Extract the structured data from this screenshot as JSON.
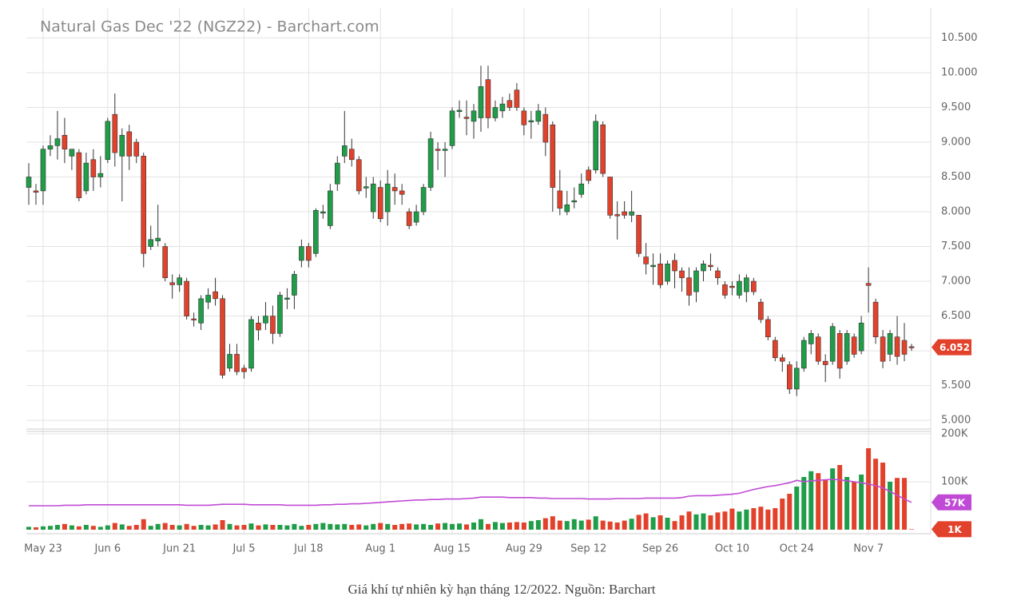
{
  "chart_data": {
    "type": "candlestick",
    "title": "Natural Gas Dec '22 (NGZ22) - Barchart.com",
    "caption": "Giá khí tự nhiên kỳ hạn tháng 12/2022. Nguồn: Barchart",
    "categories": [
      null,
      null,
      "May 23",
      null,
      null,
      null,
      null,
      null,
      null,
      null,
      null,
      "Jun 6",
      null,
      null,
      null,
      null,
      null,
      null,
      null,
      null,
      null,
      "Jun 21",
      null,
      null,
      null,
      null,
      null,
      null,
      null,
      null,
      "Jul 5",
      null,
      null,
      null,
      null,
      null,
      null,
      null,
      null,
      "Jul 18",
      null,
      null,
      null,
      null,
      null,
      null,
      null,
      null,
      null,
      "Aug 1",
      null,
      null,
      null,
      null,
      null,
      null,
      null,
      null,
      null,
      "Aug 15",
      null,
      null,
      null,
      null,
      null,
      null,
      null,
      null,
      null,
      "Aug 29",
      null,
      null,
      null,
      null,
      null,
      null,
      null,
      null,
      "Sep 12",
      null,
      null,
      null,
      null,
      null,
      null,
      null,
      null,
      null,
      "Sep 26",
      null,
      null,
      null,
      null,
      null,
      null,
      null,
      null,
      null,
      "Oct 10",
      null,
      null,
      null,
      null,
      null,
      null,
      null,
      null,
      "Oct 24",
      null,
      null,
      null,
      null,
      null,
      null,
      null,
      null,
      null,
      "Nov 7",
      null,
      null,
      null,
      null,
      null,
      null
    ],
    "open": [
      8.35,
      8.3,
      8.3,
      8.9,
      8.95,
      9.1,
      8.8,
      8.85,
      8.3,
      8.75,
      8.5,
      8.75,
      9.4,
      8.8,
      9.15,
      9.0,
      8.8,
      7.5,
      7.58,
      7.5,
      6.98,
      6.95,
      7.0,
      6.46,
      6.4,
      6.7,
      6.85,
      6.75,
      5.75,
      5.95,
      5.75,
      5.75,
      6.4,
      6.4,
      6.5,
      6.25,
      6.74,
      6.8,
      7.3,
      7.5,
      7.4,
      7.98,
      7.8,
      8.4,
      8.8,
      8.9,
      8.75,
      8.34,
      8.0,
      8.35,
      8.0,
      8.35,
      8.3,
      8.0,
      7.85,
      8.0,
      8.35,
      8.9,
      8.88,
      8.95,
      9.44,
      9.36,
      9.3,
      9.35,
      9.9,
      9.35,
      9.45,
      9.6,
      9.75,
      9.45,
      9.29,
      9.3,
      9.4,
      9.25,
      8.3,
      8.0,
      8.14,
      8.25,
      8.6,
      8.6,
      9.25,
      8.5,
      7.96,
      8.0,
      7.95,
      7.95,
      7.35,
      7.21,
      7.25,
      7.0,
      7.3,
      7.15,
      7.05,
      6.85,
      7.15,
      7.23,
      7.15,
      6.95,
      6.93,
      6.8,
      6.85,
      7.0,
      6.7,
      6.45,
      6.15,
      5.9,
      5.8,
      5.45,
      5.75,
      6.1,
      6.2,
      5.85,
      5.85,
      6.25,
      5.85,
      6.2,
      6.0,
      6.97,
      6.7,
      6.2,
      5.95,
      6.2,
      6.15,
      6.06
    ],
    "high": [
      8.7,
      8.4,
      8.95,
      9.1,
      9.45,
      9.35,
      8.9,
      8.9,
      8.85,
      8.9,
      8.8,
      9.35,
      9.7,
      9.2,
      9.25,
      9.05,
      8.85,
      7.8,
      8.1,
      7.55,
      7.1,
      7.1,
      7.05,
      6.55,
      6.8,
      6.9,
      7.05,
      6.8,
      6.1,
      6.1,
      5.8,
      6.5,
      6.5,
      6.7,
      6.65,
      6.85,
      6.9,
      7.15,
      7.6,
      7.55,
      8.05,
      8.1,
      8.4,
      8.8,
      9.45,
      9.05,
      8.8,
      8.5,
      8.5,
      8.45,
      8.6,
      8.55,
      8.4,
      8.05,
      8.1,
      8.4,
      9.15,
      9.0,
      9.0,
      9.5,
      9.6,
      9.6,
      9.55,
      10.1,
      10.1,
      9.6,
      9.65,
      9.7,
      9.85,
      9.5,
      9.45,
      9.55,
      9.5,
      9.3,
      8.6,
      8.3,
      8.35,
      8.55,
      8.65,
      9.4,
      9.3,
      8.5,
      8.15,
      8.15,
      8.3,
      7.95,
      7.55,
      7.4,
      7.4,
      7.3,
      7.4,
      7.2,
      7.2,
      7.2,
      7.3,
      7.4,
      7.2,
      7.0,
      7.0,
      7.1,
      7.1,
      7.05,
      6.75,
      6.5,
      6.2,
      5.95,
      5.85,
      5.85,
      6.2,
      6.3,
      6.25,
      5.95,
      6.4,
      6.3,
      6.3,
      6.25,
      6.5,
      7.2,
      6.75,
      6.3,
      6.3,
      6.5,
      6.4,
      6.1
    ],
    "low": [
      8.1,
      8.1,
      8.1,
      8.8,
      8.75,
      8.7,
      8.6,
      8.15,
      8.25,
      8.3,
      8.35,
      8.7,
      8.65,
      8.15,
      8.6,
      8.7,
      7.2,
      7.45,
      7.5,
      7.0,
      6.75,
      6.85,
      6.45,
      6.35,
      6.3,
      6.6,
      6.65,
      5.6,
      5.7,
      5.65,
      5.6,
      5.7,
      6.15,
      6.3,
      6.1,
      6.2,
      6.6,
      6.6,
      7.2,
      7.2,
      7.35,
      7.9,
      7.75,
      8.3,
      8.7,
      8.65,
      8.25,
      8.2,
      7.9,
      7.85,
      7.8,
      8.1,
      8.1,
      7.75,
      7.8,
      7.95,
      8.3,
      8.6,
      8.5,
      8.9,
      9.35,
      9.1,
      9.05,
      9.15,
      9.2,
      9.3,
      9.35,
      9.45,
      9.45,
      9.1,
      9.05,
      9.25,
      8.8,
      8.0,
      7.95,
      7.95,
      8.05,
      8.2,
      8.4,
      8.55,
      8.5,
      7.9,
      7.6,
      7.9,
      7.85,
      7.35,
      7.1,
      6.95,
      6.9,
      6.95,
      6.9,
      6.85,
      6.65,
      6.7,
      7.0,
      7.15,
      6.95,
      6.75,
      6.8,
      6.75,
      6.7,
      6.8,
      6.4,
      6.15,
      5.85,
      5.7,
      5.38,
      5.35,
      5.7,
      5.95,
      5.8,
      5.55,
      5.8,
      5.6,
      5.8,
      5.9,
      5.95,
      6.55,
      6.1,
      5.75,
      5.85,
      5.8,
      5.85,
      6.0
    ],
    "close": [
      8.5,
      8.28,
      8.9,
      8.95,
      9.05,
      8.9,
      8.9,
      8.2,
      8.7,
      8.5,
      8.55,
      9.3,
      8.85,
      9.1,
      8.8,
      8.8,
      7.4,
      7.6,
      7.62,
      7.05,
      6.95,
      7.05,
      6.5,
      6.45,
      6.75,
      6.8,
      6.75,
      5.65,
      5.95,
      5.7,
      5.7,
      6.45,
      6.3,
      6.5,
      6.25,
      6.8,
      6.76,
      7.1,
      7.5,
      7.3,
      8.02,
      8.0,
      8.3,
      8.7,
      8.95,
      8.75,
      8.3,
      8.36,
      8.4,
      7.9,
      8.4,
      8.3,
      8.25,
      7.8,
      8.0,
      8.35,
      9.05,
      8.88,
      8.9,
      9.45,
      9.46,
      9.34,
      9.45,
      9.8,
      9.35,
      9.5,
      9.55,
      9.5,
      9.5,
      9.25,
      9.31,
      9.45,
      9.0,
      8.35,
      8.05,
      8.1,
      8.16,
      8.4,
      8.45,
      9.3,
      8.55,
      7.95,
      7.94,
      7.95,
      8.0,
      7.4,
      7.25,
      7.23,
      6.95,
      7.25,
      7.15,
      7.05,
      6.8,
      7.15,
      7.25,
      7.21,
      7.05,
      6.8,
      6.91,
      7.0,
      7.05,
      6.85,
      6.45,
      6.2,
      5.9,
      5.85,
      5.45,
      5.75,
      6.15,
      6.25,
      5.85,
      5.8,
      6.35,
      5.75,
      6.25,
      5.95,
      6.4,
      6.94,
      6.2,
      5.85,
      6.25,
      5.92,
      5.95,
      6.052
    ],
    "up_color": "#1f9d48",
    "down_color": "#e2422b",
    "ylim": [
      4.95,
      10.93
    ],
    "yticks": [
      {
        "value": 5,
        "label": "5.000"
      },
      {
        "value": 5.5,
        "label": "5.500"
      },
      {
        "value": 6,
        "label": "6.000"
      },
      {
        "value": 6.5,
        "label": "6.500"
      },
      {
        "value": 7,
        "label": "7.000"
      },
      {
        "value": 7.5,
        "label": "7.500"
      },
      {
        "value": 8,
        "label": "8.000"
      },
      {
        "value": 8.5,
        "label": "8.500"
      },
      {
        "value": 9,
        "label": "9.000"
      },
      {
        "value": 9.5,
        "label": "9.500"
      },
      {
        "value": 10,
        "label": "10.000"
      },
      {
        "value": 10.5,
        "label": "10.500"
      }
    ],
    "grid": true,
    "volume": {
      "values": [
        6,
        5,
        7,
        8,
        10,
        12,
        9,
        7,
        10,
        8,
        6,
        9,
        14,
        11,
        8,
        10,
        22,
        8,
        12,
        14,
        10,
        9,
        12,
        8,
        10,
        9,
        11,
        20,
        12,
        9,
        10,
        13,
        9,
        11,
        10,
        10,
        9,
        12,
        8,
        10,
        12,
        14,
        12,
        11,
        12,
        10,
        11,
        9,
        12,
        14,
        12,
        10,
        12,
        13,
        11,
        12,
        10,
        13,
        14,
        12,
        13,
        11,
        15,
        22,
        12,
        16,
        14,
        15,
        16,
        15,
        18,
        20,
        24,
        28,
        19,
        18,
        22,
        19,
        21,
        28,
        19,
        17,
        15,
        19,
        23,
        31,
        34,
        26,
        30,
        25,
        18,
        30,
        38,
        32,
        34,
        30,
        36,
        38,
        44,
        38,
        42,
        45,
        48,
        42,
        45,
        65,
        75,
        90,
        110,
        122,
        118,
        105,
        128,
        135,
        110,
        100,
        115,
        170,
        148,
        140,
        100,
        108,
        108,
        1
      ],
      "last_label": "1K"
    },
    "volume_ma": {
      "color": "#c04ad6",
      "values": [
        50,
        50,
        50,
        50,
        50,
        51,
        51,
        51,
        52,
        52,
        52,
        52,
        52,
        52,
        52,
        52,
        52,
        52,
        52,
        52,
        52,
        52,
        51,
        51,
        51,
        51,
        52,
        53,
        53,
        53,
        53,
        52,
        52,
        52,
        52,
        52,
        51,
        51,
        51,
        51,
        51,
        52,
        52,
        53,
        53,
        54,
        54,
        55,
        56,
        57,
        58,
        59,
        60,
        61,
        62,
        62,
        63,
        63,
        64,
        64,
        64,
        65,
        66,
        68,
        68,
        68,
        68,
        67,
        67,
        67,
        67,
        66,
        66,
        65,
        65,
        65,
        65,
        65,
        64,
        64,
        64,
        64,
        65,
        65,
        65,
        65,
        66,
        66,
        66,
        66,
        66,
        67,
        70,
        71,
        71,
        71,
        72,
        73,
        74,
        76,
        80,
        84,
        87,
        90,
        92,
        95,
        98,
        103,
        100,
        102,
        103,
        104,
        105,
        104,
        102,
        100,
        98,
        95,
        92,
        87,
        80,
        72,
        64,
        57
      ],
      "last_label": "57K"
    },
    "vlim": [
      0,
      205
    ],
    "vticks": [
      {
        "value": 100,
        "label": "100K"
      },
      {
        "value": 200,
        "label": "200K"
      }
    ]
  }
}
